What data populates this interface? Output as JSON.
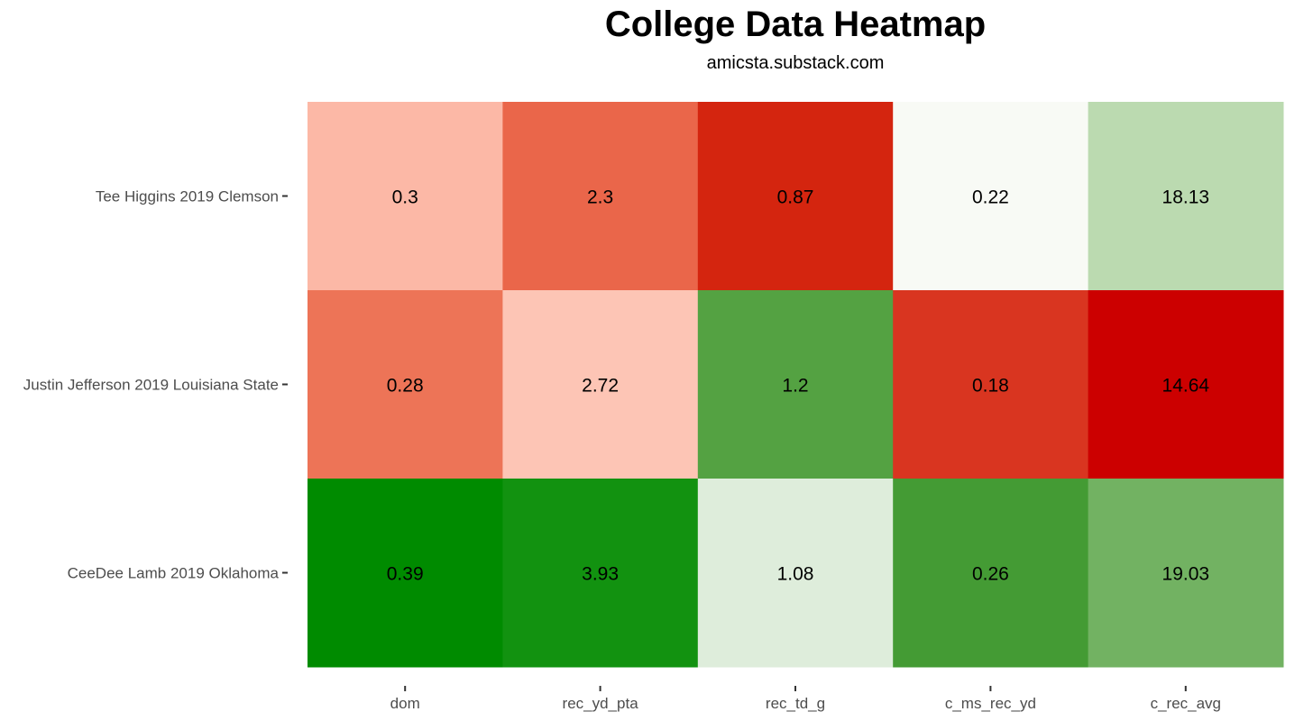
{
  "chart_data": {
    "type": "heatmap",
    "title": "College Data Heatmap",
    "subtitle": "amicsta.substack.com",
    "x_categories": [
      "dom",
      "rec_yd_pta",
      "rec_td_g",
      "c_ms_rec_yd",
      "c_rec_avg"
    ],
    "y_categories": [
      "Tee Higgins 2019 Clemson",
      "Justin Jefferson 2019 Louisiana State",
      "CeeDee Lamb 2019 Oklahoma"
    ],
    "values": [
      [
        "0.3",
        "2.3",
        "0.87",
        "0.22",
        "18.13"
      ],
      [
        "0.28",
        "2.72",
        "1.2",
        "0.18",
        "14.64"
      ],
      [
        "0.39",
        "3.93",
        "1.08",
        "0.26",
        "19.03"
      ]
    ],
    "cell_colors": [
      [
        "#fcb8a6",
        "#ea664a",
        "#d4250f",
        "#f8faf5",
        "#bbdab0"
      ],
      [
        "#ed7457",
        "#fdc5b5",
        "#54a242",
        "#d93520",
        "#cc0000"
      ],
      [
        "#008b00",
        "#129210",
        "#deeddb",
        "#449b34",
        "#72b262"
      ]
    ],
    "grid": false,
    "legend": "none"
  }
}
